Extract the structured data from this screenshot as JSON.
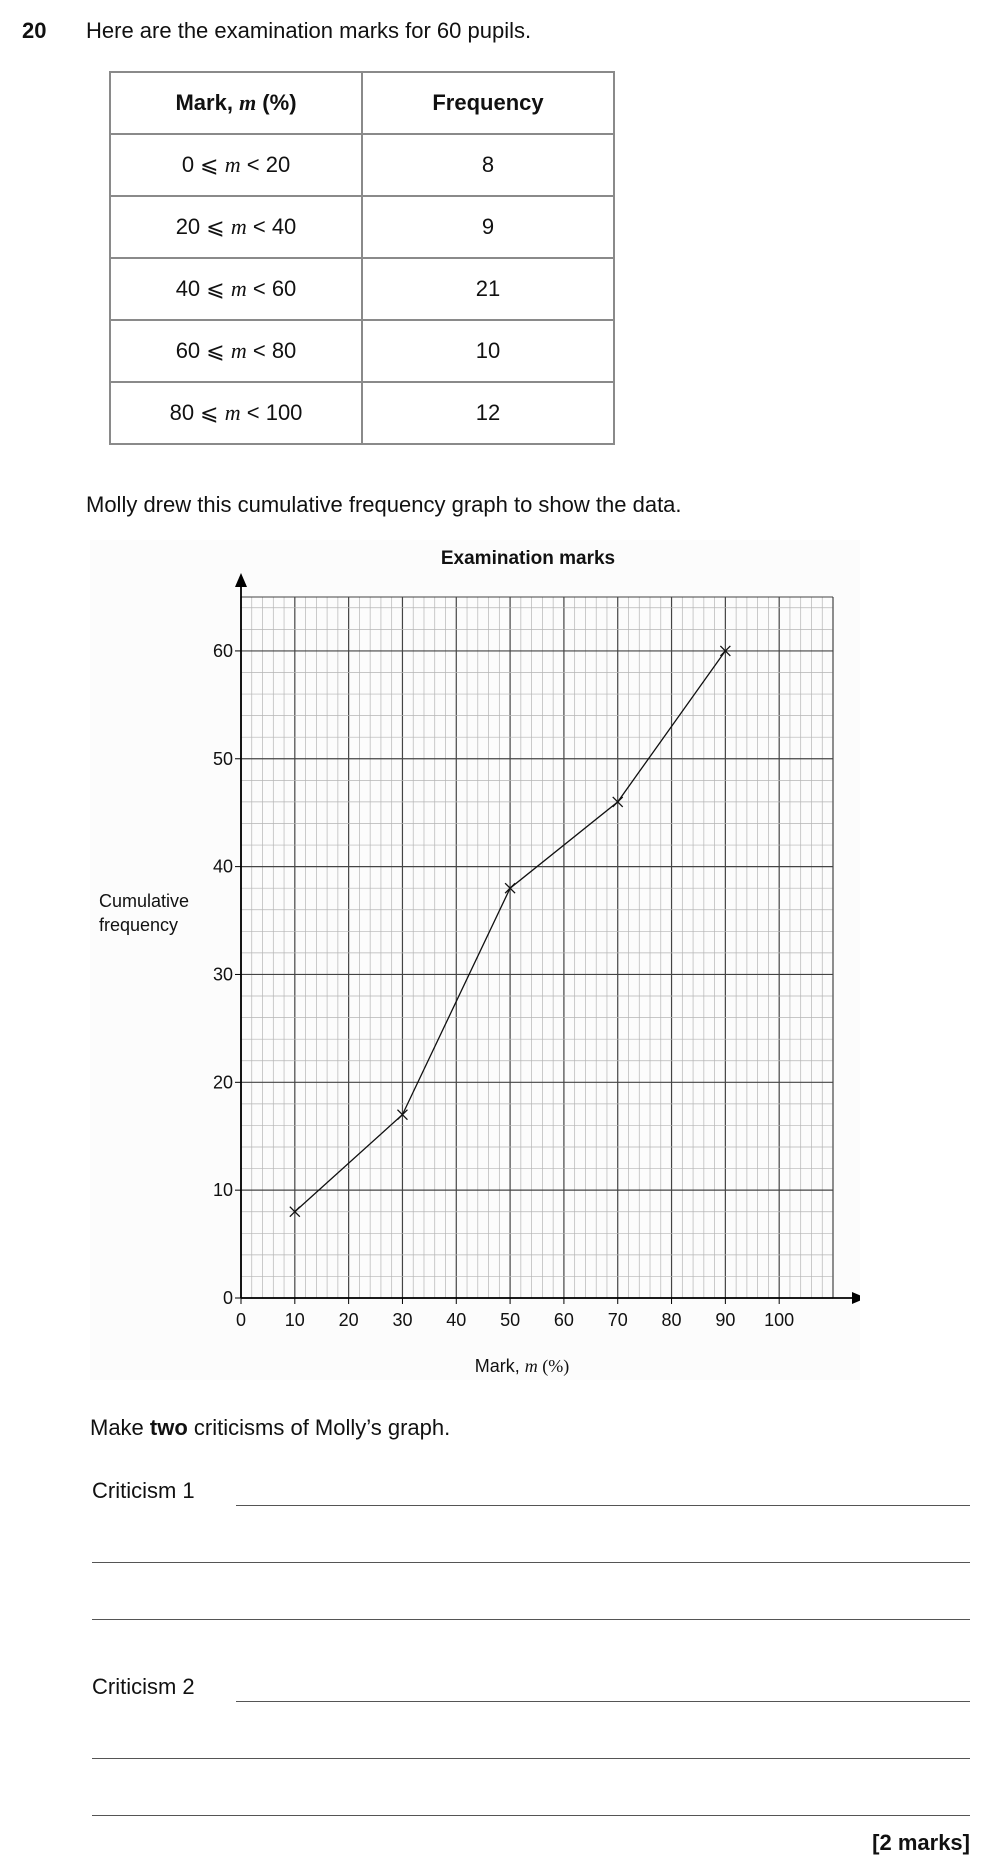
{
  "question": {
    "number": "20",
    "intro": "Here are the examination marks for 60 pupils.",
    "molly_text": "Molly drew this cumulative frequency graph to show the data.",
    "make_pre": "Make ",
    "make_bold": "two",
    "make_post": " criticisms of Molly’s graph.",
    "criticism1_label": "Criticism 1",
    "criticism2_label": "Criticism 2",
    "marks": "[2 marks]"
  },
  "table": {
    "header_mark_pre": "Mark, ",
    "header_mark_var": "m",
    "header_mark_post": " (%)",
    "header_freq": "Frequency",
    "rows": [
      {
        "low": "0",
        "var": "m",
        "high": "20",
        "freq": "8"
      },
      {
        "low": "20",
        "var": "m",
        "high": "40",
        "freq": "9"
      },
      {
        "low": "40",
        "var": "m",
        "high": "60",
        "freq": "21"
      },
      {
        "low": "60",
        "var": "m",
        "high": "80",
        "freq": "10"
      },
      {
        "low": "80",
        "var": "m",
        "high": "100",
        "freq": "12"
      }
    ]
  },
  "chart_data": {
    "type": "line",
    "title": "Examination marks",
    "xlabel_pre": "Mark, ",
    "xlabel_var": "m",
    "xlabel_post": " (%)",
    "ylabel_line1": "Cumulative",
    "ylabel_line2": "frequency",
    "x": [
      10,
      30,
      50,
      70,
      90
    ],
    "y": [
      8,
      17,
      38,
      46,
      60
    ],
    "xlim": [
      0,
      110
    ],
    "ylim": [
      0,
      65
    ],
    "xticks": [
      0,
      10,
      20,
      30,
      40,
      50,
      60,
      70,
      80,
      90,
      100
    ],
    "yticks": [
      0,
      10,
      20,
      30,
      40,
      50,
      60
    ],
    "grid": true,
    "marker": "cross"
  }
}
